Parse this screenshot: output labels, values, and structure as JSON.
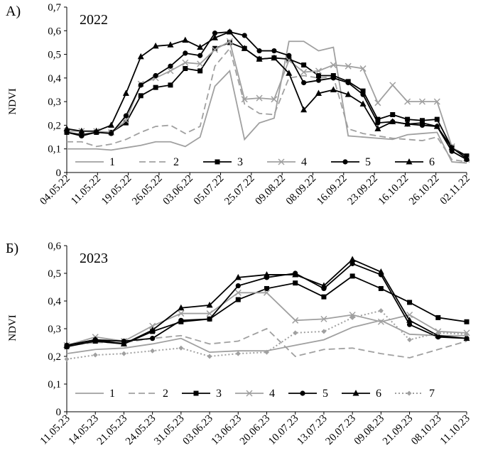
{
  "chart_data": [
    {
      "type": "line",
      "panel_label": "А)",
      "title": "2022",
      "ylabel": "NDVI",
      "ylim": [
        0,
        0.7
      ],
      "yticks": [
        "0",
        "0,1",
        "0,2",
        "0,3",
        "0,4",
        "0,5",
        "0,6",
        "0,7"
      ],
      "grid": false,
      "legend_position": "bottom inside plot",
      "x_tick_labels": [
        "04.05.22",
        "11.05.22",
        "19.05.22",
        "26.05.22",
        "03.06.22",
        "05.07.22",
        "25.07.22",
        "09.08.22",
        "08.09.22",
        "16.09.22",
        "23.09.22",
        "16.10.22",
        "26.10.22",
        "02.11.22"
      ],
      "x": [
        0,
        1,
        2,
        3,
        4,
        5,
        6,
        7,
        8,
        9,
        10,
        11,
        12,
        13,
        14,
        15,
        16,
        17,
        18,
        19,
        20,
        21,
        22,
        23,
        24,
        25,
        26,
        27
      ],
      "series": [
        {
          "name": "1",
          "color": "#a0a0a0",
          "dash": "solid",
          "marker": "none",
          "values": [
            0.1,
            0.1,
            0.1,
            0.095,
            0.105,
            0.115,
            0.13,
            0.13,
            0.11,
            0.15,
            0.365,
            0.43,
            0.14,
            0.21,
            0.23,
            0.555,
            0.555,
            0.515,
            0.53,
            0.155,
            0.15,
            0.145,
            0.14,
            0.16,
            0.165,
            0.17,
            0.045,
            0.04
          ]
        },
        {
          "name": "2",
          "color": "#a0a0a0",
          "dash": "dashed",
          "marker": "none",
          "values": [
            0.13,
            0.13,
            0.11,
            0.12,
            0.14,
            0.17,
            0.195,
            0.2,
            0.165,
            0.195,
            0.45,
            0.525,
            0.29,
            0.25,
            0.245,
            0.4,
            0.41,
            0.4,
            0.405,
            0.185,
            0.165,
            0.155,
            0.145,
            0.14,
            0.135,
            0.15,
            0.055,
            0.045
          ]
        },
        {
          "name": "3",
          "color": "#000000",
          "dash": "solid",
          "marker": "square",
          "values": [
            0.17,
            0.16,
            0.17,
            0.17,
            0.21,
            0.325,
            0.36,
            0.37,
            0.44,
            0.43,
            0.525,
            0.55,
            0.525,
            0.48,
            0.485,
            0.48,
            0.455,
            0.41,
            0.41,
            0.385,
            0.345,
            0.225,
            0.245,
            0.225,
            0.22,
            0.225,
            0.105,
            0.07
          ]
        },
        {
          "name": "4",
          "color": "#a0a0a0",
          "dash": "solid",
          "marker": "x",
          "values": [
            0.175,
            0.175,
            0.175,
            0.17,
            0.22,
            0.375,
            0.4,
            0.43,
            0.465,
            0.46,
            0.52,
            0.555,
            0.31,
            0.315,
            0.31,
            0.475,
            0.425,
            0.43,
            0.455,
            0.45,
            0.44,
            0.295,
            0.37,
            0.3,
            0.3,
            0.3,
            0.11,
            0.055
          ]
        },
        {
          "name": "5",
          "color": "#000000",
          "dash": "solid",
          "marker": "circle",
          "values": [
            0.17,
            0.155,
            0.17,
            0.165,
            0.24,
            0.37,
            0.41,
            0.45,
            0.505,
            0.495,
            0.59,
            0.595,
            0.58,
            0.515,
            0.515,
            0.495,
            0.38,
            0.39,
            0.4,
            0.38,
            0.33,
            0.21,
            0.215,
            0.205,
            0.2,
            0.195,
            0.09,
            0.055
          ]
        },
        {
          "name": "6",
          "color": "#000000",
          "dash": "solid",
          "marker": "triangle",
          "values": [
            0.185,
            0.175,
            0.175,
            0.2,
            0.335,
            0.49,
            0.535,
            0.54,
            0.56,
            0.53,
            0.57,
            0.595,
            0.525,
            0.48,
            0.485,
            0.42,
            0.265,
            0.335,
            0.35,
            0.33,
            0.29,
            0.185,
            0.215,
            0.205,
            0.21,
            0.195,
            0.105,
            0.06
          ]
        }
      ]
    },
    {
      "type": "line",
      "panel_label": "Б)",
      "title": "2023",
      "ylabel": "NDVI",
      "ylim": [
        0,
        0.6
      ],
      "yticks": [
        "0",
        "0,1",
        "0,2",
        "0,3",
        "0,4",
        "0,5",
        "0,6"
      ],
      "grid": false,
      "legend_position": "bottom inside plot",
      "x_tick_labels": [
        "11.05.23",
        "14.05.23",
        "21.05.23",
        "24.05.23",
        "31.05.23",
        "03.06.23",
        "13.06.23",
        "20.06.23",
        "10.07.23",
        "13.07.23",
        "20.07.23",
        "09.08.23",
        "21.09.23",
        "08.10.23",
        "11.10.23"
      ],
      "x": [
        0,
        1,
        2,
        3,
        4,
        5,
        6,
        7,
        8,
        9,
        10,
        11,
        12,
        13,
        14
      ],
      "series": [
        {
          "name": "1",
          "color": "#a0a0a0",
          "dash": "solid",
          "marker": "none",
          "values": [
            0.21,
            0.225,
            0.23,
            0.245,
            0.265,
            0.215,
            0.22,
            0.22,
            0.24,
            0.26,
            0.305,
            0.33,
            0.28,
            0.275,
            0.275
          ]
        },
        {
          "name": "2",
          "color": "#a0a0a0",
          "dash": "dashed",
          "marker": "none",
          "values": [
            0.24,
            0.25,
            0.25,
            0.265,
            0.275,
            0.245,
            0.255,
            0.3,
            0.2,
            0.225,
            0.23,
            0.21,
            0.195,
            0.225,
            0.255
          ]
        },
        {
          "name": "3",
          "color": "#000000",
          "dash": "solid",
          "marker": "square",
          "values": [
            0.235,
            0.255,
            0.245,
            0.29,
            0.325,
            0.335,
            0.405,
            0.445,
            0.465,
            0.415,
            0.49,
            0.445,
            0.395,
            0.34,
            0.325
          ]
        },
        {
          "name": "4",
          "color": "#a0a0a0",
          "dash": "solid",
          "marker": "x",
          "values": [
            0.24,
            0.27,
            0.255,
            0.31,
            0.355,
            0.355,
            0.43,
            0.43,
            0.33,
            0.335,
            0.35,
            0.325,
            0.35,
            0.29,
            0.285
          ]
        },
        {
          "name": "5",
          "color": "#000000",
          "dash": "solid",
          "marker": "circle",
          "values": [
            0.24,
            0.26,
            0.255,
            0.265,
            0.33,
            0.335,
            0.455,
            0.485,
            0.5,
            0.445,
            0.535,
            0.495,
            0.315,
            0.27,
            0.265
          ]
        },
        {
          "name": "6",
          "color": "#000000",
          "dash": "solid",
          "marker": "triangle",
          "values": [
            0.24,
            0.26,
            0.245,
            0.295,
            0.375,
            0.385,
            0.485,
            0.495,
            0.495,
            0.455,
            0.55,
            0.505,
            0.33,
            0.275,
            0.265
          ]
        },
        {
          "name": "7",
          "color": "#a0a0a0",
          "dash": "dotted",
          "marker": "diamond",
          "values": [
            0.19,
            0.205,
            0.21,
            0.22,
            0.23,
            0.2,
            0.21,
            0.215,
            0.285,
            0.29,
            0.34,
            0.365,
            0.26,
            0.285,
            0.28
          ]
        }
      ]
    }
  ]
}
